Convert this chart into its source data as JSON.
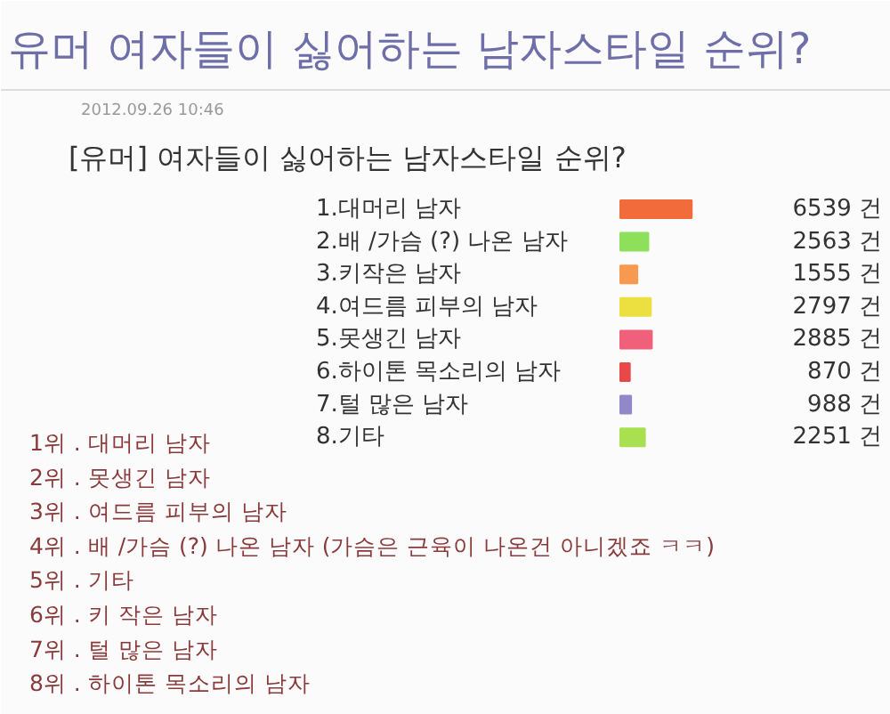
{
  "chart_data": {
    "type": "bar",
    "orientation": "horizontal",
    "title": "[유머] 여자들이 싫어하는 남자스타일 순위?",
    "subtitle": "2012.09.26 10:46",
    "categories": [
      "1.대머리 남자",
      "2.배 /가슴 (?) 나온 남자",
      "3.키작은 남자",
      "4.여드름 피부의 남자",
      "5.못생긴 남자",
      "6.하이톤 목소리의 남자",
      "7.털 많은 남자",
      "8.기타"
    ],
    "values": [
      6539,
      2563,
      1555,
      2797,
      2885,
      870,
      988,
      2251
    ],
    "colors": [
      "#f26b3a",
      "#8ee05a",
      "#f79a50",
      "#ece040",
      "#f0607a",
      "#e84848",
      "#9088c8",
      "#a8e050"
    ],
    "value_labels": [
      "6539 건",
      "2563 건",
      "1555 건",
      "2797 건",
      "2885 건",
      "870 건",
      "988 건",
      "2251 건"
    ],
    "annotations": [
      "유머 여자들이 싫어하는 남자스타일 순위?",
      "1위 . 대머리 남자",
      "2위 . 못생긴 남자",
      "3위 . 여드름 피부의 남자",
      "4위 . 배 /가슴 (?) 나온 남자 (가슴은 근육이 나온건 아니겠죠 ㅋㅋ)",
      "5위 . 기타",
      "6위 . 키 작은 남자",
      "7위 . 털 많은 남자",
      "8위 . 하이톤 목소리의 남자"
    ]
  }
}
